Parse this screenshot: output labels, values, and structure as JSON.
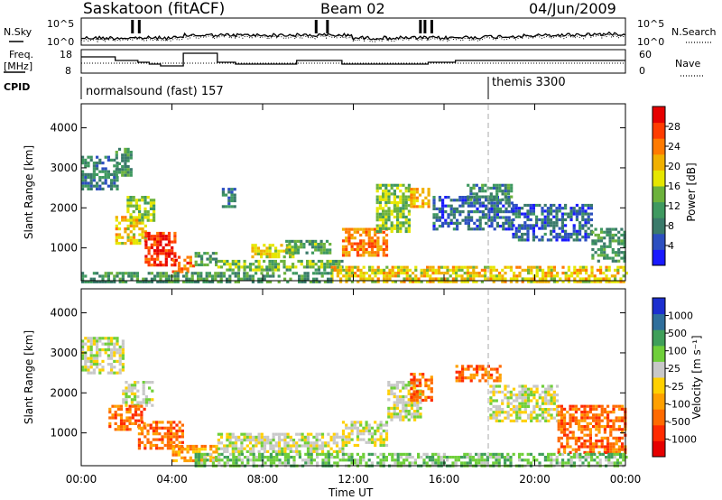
{
  "header": {
    "station": "Saskatoon (fitACF)",
    "beam": "Beam 02",
    "date": "04/Jun/2009"
  },
  "top_panels": {
    "nsky_label": "N.Sky",
    "nsky_ticks": [
      "10^5",
      "10^0"
    ],
    "nsearch_label": "N.Search",
    "nsearch_ticks": [
      "10^5",
      "10^0"
    ],
    "freq_label_line1": "Freq.",
    "freq_label_line2": "[MHz]",
    "freq_ticks": [
      "18",
      "8"
    ],
    "nave_label": "Nave",
    "nave_ticks": [
      "60",
      "0"
    ],
    "cpid_label": "CPID",
    "cpid_modes": [
      {
        "name": "normalsound (fast) 157",
        "start_hour": 0
      },
      {
        "name": "themis 3300",
        "start_hour": 18
      }
    ],
    "freq_steps": [
      {
        "t0": 0.0,
        "t1": 1.5,
        "mhz": 15
      },
      {
        "t0": 1.5,
        "t1": 2.5,
        "mhz": 13
      },
      {
        "t0": 2.5,
        "t1": 3.0,
        "mhz": 12
      },
      {
        "t0": 3.0,
        "t1": 3.5,
        "mhz": 11
      },
      {
        "t0": 3.5,
        "t1": 4.5,
        "mhz": 10
      },
      {
        "t0": 4.5,
        "t1": 6.0,
        "mhz": 17
      },
      {
        "t0": 6.0,
        "t1": 6.8,
        "mhz": 12
      },
      {
        "t0": 6.8,
        "t1": 9.5,
        "mhz": 11
      },
      {
        "t0": 9.5,
        "t1": 11.5,
        "mhz": 13
      },
      {
        "t0": 11.5,
        "t1": 15.3,
        "mhz": 11
      },
      {
        "t0": 15.3,
        "t1": 16.5,
        "mhz": 12
      },
      {
        "t0": 16.5,
        "t1": 18.5,
        "mhz": 13
      },
      {
        "t0": 18.5,
        "t1": 24.0,
        "mhz": 13
      }
    ]
  },
  "chart_data": [
    {
      "type": "heatmap",
      "quantity": "power",
      "ylabel": "Slant Range [km]",
      "xlabel": "Time UT",
      "xlim": [
        0,
        24
      ],
      "ylim": [
        180,
        4600
      ],
      "xticks": [
        "00:00",
        "04:00",
        "08:00",
        "12:00",
        "16:00",
        "20:00",
        "00:00"
      ],
      "yticks": [
        1000,
        2000,
        3000,
        4000
      ],
      "colorbar_label": "Power [dB]",
      "colorbar_ticks": [
        4,
        8,
        12,
        16,
        20,
        24,
        28
      ],
      "colorbar_range": [
        0,
        30
      ],
      "colors": [
        "#1a1aff",
        "#2c4fc0",
        "#3a7a6a",
        "#3f9960",
        "#6cb23c",
        "#e6e600",
        "#f0b000",
        "#ff7a00",
        "#ff3c00",
        "#e60000"
      ],
      "echo_regions": [
        {
          "t0": 0.0,
          "t1": 1.6,
          "r0": 2500,
          "r1": 3300,
          "value": 8
        },
        {
          "t0": 1.5,
          "t1": 2.2,
          "r0": 2800,
          "r1": 3500,
          "value": 10
        },
        {
          "t0": 2.0,
          "t1": 3.2,
          "r0": 1700,
          "r1": 2300,
          "value": 14
        },
        {
          "t0": 1.5,
          "t1": 2.8,
          "r0": 1100,
          "r1": 1800,
          "value": 18
        },
        {
          "t0": 2.8,
          "t1": 4.2,
          "r0": 600,
          "r1": 1400,
          "value": 27
        },
        {
          "t0": 4.0,
          "t1": 5.0,
          "r0": 400,
          "r1": 800,
          "value": 24
        },
        {
          "t0": 5.0,
          "t1": 6.0,
          "r0": 600,
          "r1": 900,
          "value": 10
        },
        {
          "t0": 6.2,
          "t1": 6.8,
          "r0": 2000,
          "r1": 2500,
          "value": 8
        },
        {
          "t0": 6.0,
          "t1": 8.0,
          "r0": 450,
          "r1": 700,
          "value": 14
        },
        {
          "t0": 7.5,
          "t1": 9.5,
          "r0": 800,
          "r1": 1100,
          "value": 17
        },
        {
          "t0": 9.0,
          "t1": 11.0,
          "r0": 900,
          "r1": 1200,
          "value": 12
        },
        {
          "t0": 8.0,
          "t1": 11.5,
          "r0": 450,
          "r1": 700,
          "value": 12
        },
        {
          "t0": 11.5,
          "t1": 13.5,
          "r0": 800,
          "r1": 1500,
          "value": 22
        },
        {
          "t0": 13.0,
          "t1": 14.5,
          "r0": 1400,
          "r1": 2600,
          "value": 14
        },
        {
          "t0": 14.5,
          "t1": 15.3,
          "r0": 2000,
          "r1": 2500,
          "value": 20
        },
        {
          "t0": 15.5,
          "t1": 19.0,
          "r0": 1500,
          "r1": 2300,
          "value": 6
        },
        {
          "t0": 17.0,
          "t1": 19.0,
          "r0": 2200,
          "r1": 2600,
          "value": 9
        },
        {
          "t0": 19.0,
          "t1": 22.5,
          "r0": 1200,
          "r1": 2100,
          "value": 6
        },
        {
          "t0": 22.5,
          "t1": 24.0,
          "r0": 700,
          "r1": 1500,
          "value": 10
        },
        {
          "t0": 11.0,
          "t1": 24.0,
          "r0": 180,
          "r1": 550,
          "value": 18
        },
        {
          "t0": 0.0,
          "t1": 11.0,
          "r0": 180,
          "r1": 400,
          "value": 10
        }
      ]
    },
    {
      "type": "heatmap",
      "quantity": "velocity",
      "ylabel": "Slant Range [km]",
      "xlabel": "Time UT",
      "xlim": [
        0,
        24
      ],
      "ylim": [
        180,
        4600
      ],
      "xticks": [
        "00:00",
        "04:00",
        "08:00",
        "12:00",
        "16:00",
        "20:00",
        "00:00"
      ],
      "yticks": [
        1000,
        2000,
        3000,
        4000
      ],
      "colorbar_label": "Velocity [m s⁻¹]",
      "colorbar_ticks": [
        "1000",
        "500",
        "100",
        "25",
        "-25",
        "-100",
        "-500",
        "-1000"
      ],
      "colors": [
        "#1c2fcf",
        "#2f6f9c",
        "#3f9f5a",
        "#6fcf3a",
        "#c8c8c8",
        "#ffd000",
        "#ffa000",
        "#ff6a00",
        "#ff2a00",
        "#e60000"
      ],
      "echo_regions": [
        {
          "t0": 0.0,
          "t1": 1.8,
          "r0": 2500,
          "r1": 3400,
          "value": 4
        },
        {
          "t0": 1.8,
          "t1": 3.2,
          "r0": 1700,
          "r1": 2300,
          "value": 4
        },
        {
          "t0": 1.2,
          "t1": 2.8,
          "r0": 1100,
          "r1": 1700,
          "value": 7
        },
        {
          "t0": 2.5,
          "t1": 4.5,
          "r0": 600,
          "r1": 1300,
          "value": 7
        },
        {
          "t0": 4.0,
          "t1": 6.0,
          "r0": 300,
          "r1": 700,
          "value": 6
        },
        {
          "t0": 6.0,
          "t1": 11.5,
          "r0": 500,
          "r1": 1000,
          "value": 4
        },
        {
          "t0": 11.5,
          "t1": 13.5,
          "r0": 700,
          "r1": 1300,
          "value": 4
        },
        {
          "t0": 13.5,
          "t1": 15.0,
          "r0": 1300,
          "r1": 2300,
          "value": 4
        },
        {
          "t0": 14.5,
          "t1": 15.5,
          "r0": 1800,
          "r1": 2500,
          "value": 7
        },
        {
          "t0": 16.5,
          "t1": 18.5,
          "r0": 2300,
          "r1": 2700,
          "value": 7
        },
        {
          "t0": 18.0,
          "t1": 21.0,
          "r0": 1300,
          "r1": 2200,
          "value": 4
        },
        {
          "t0": 21.0,
          "t1": 24.0,
          "r0": 500,
          "r1": 1700,
          "value": 7
        },
        {
          "t0": 5.0,
          "t1": 24.0,
          "r0": 180,
          "r1": 500,
          "value": 3
        }
      ]
    }
  ]
}
